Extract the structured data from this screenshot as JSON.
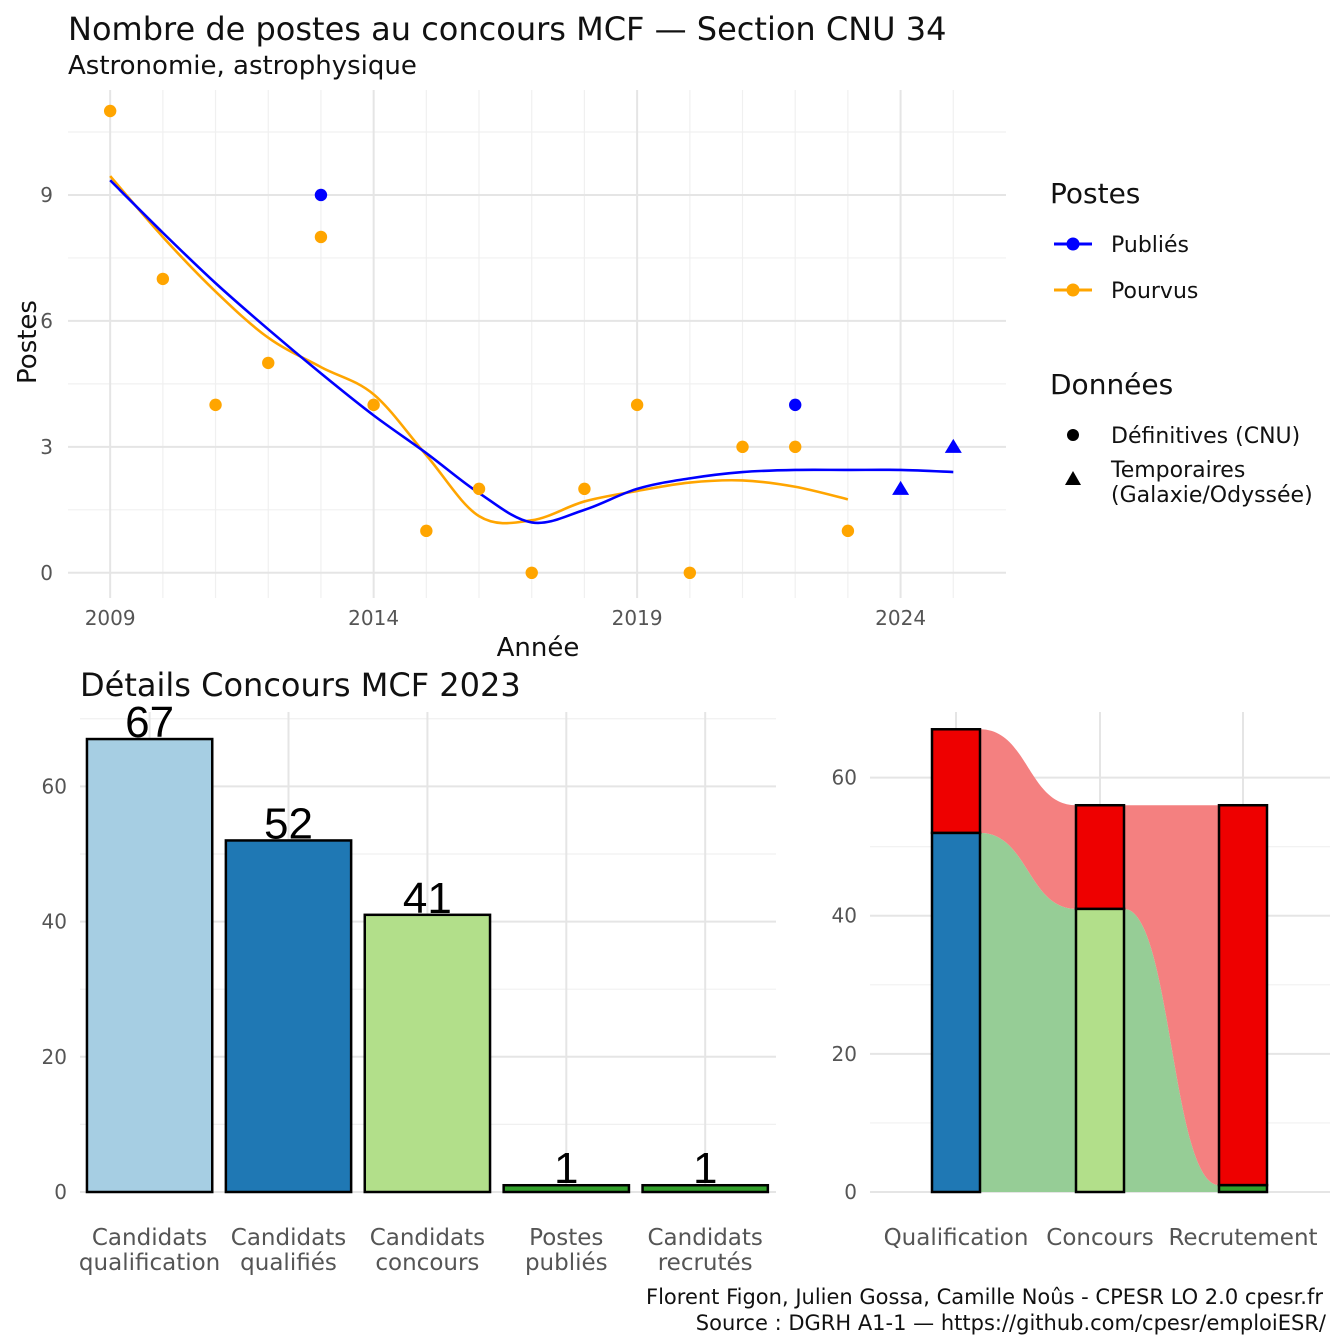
{
  "colors": {
    "publies": "#0000ff",
    "pourvus": "#ffa500",
    "cand_qualif": "#a6cee3",
    "cand_qualifies": "#1f78b4",
    "cand_concours": "#b2df8a",
    "postes_publies": "#33a02c",
    "cand_recrutes": "#33a02c",
    "red": "#ee0000",
    "flow_green": "#96cd96",
    "flow_red": "#f48080"
  },
  "top_chart": {
    "title": "Nombre de postes au concours MCF —  Section CNU 34",
    "subtitle": "Astronomie, astrophysique",
    "xlabel": "Année",
    "ylabel": "Postes",
    "legend": {
      "postes_title": "Postes",
      "postes_items": [
        "Publiés",
        "Pourvus"
      ],
      "donnees_title": "Données",
      "donnees_items": [
        "Définitives (CNU)",
        "Temporaires",
        "(Galaxie/Odyssée)"
      ]
    }
  },
  "bottom_left": {
    "title": "Détails Concours MCF 2023"
  },
  "caption": {
    "line1": "Florent Figon, Julien Gossa, Camille Noûs - CPESR LO 2.0 cpesr.fr",
    "line2": "Source : DGRH A1-1 — https://github.com/cpesr/emploiESR/"
  },
  "chart_data": [
    {
      "type": "scatter",
      "title": "Nombre de postes au concours MCF —  Section CNU 34",
      "subtitle": "Astronomie, astrophysique",
      "xlabel": "Année",
      "ylabel": "Postes",
      "xlim": [
        2008.2,
        2026.0
      ],
      "ylim": [
        -0.6,
        11.5
      ],
      "x_ticks": [
        2009,
        2014,
        2019,
        2024
      ],
      "y_ticks": [
        0,
        3,
        6,
        9
      ],
      "grid": true,
      "legend_position": "right",
      "series": [
        {
          "name": "Publiés",
          "points": [
            {
              "x": 2013,
              "y": 9,
              "shape": "circle"
            },
            {
              "x": 2022,
              "y": 4,
              "shape": "circle"
            },
            {
              "x": 2024,
              "y": 2,
              "shape": "triangle"
            },
            {
              "x": 2025,
              "y": 3,
              "shape": "triangle"
            }
          ],
          "smooth": [
            [
              2009,
              9.35
            ],
            [
              2010,
              8.1
            ],
            [
              2011,
              6.9
            ],
            [
              2012,
              5.8
            ],
            [
              2013,
              4.75
            ],
            [
              2014,
              3.75
            ],
            [
              2015,
              2.85
            ],
            [
              2016,
              1.9
            ],
            [
              2017,
              1.2
            ],
            [
              2018,
              1.5
            ],
            [
              2019,
              2.0
            ],
            [
              2020,
              2.25
            ],
            [
              2021,
              2.4
            ],
            [
              2022,
              2.45
            ],
            [
              2023,
              2.45
            ],
            [
              2024,
              2.45
            ],
            [
              2025,
              2.4
            ]
          ]
        },
        {
          "name": "Pourvus",
          "points": [
            {
              "x": 2009,
              "y": 11,
              "shape": "circle"
            },
            {
              "x": 2010,
              "y": 7,
              "shape": "circle"
            },
            {
              "x": 2011,
              "y": 4,
              "shape": "circle"
            },
            {
              "x": 2012,
              "y": 5,
              "shape": "circle"
            },
            {
              "x": 2013,
              "y": 8,
              "shape": "circle"
            },
            {
              "x": 2014,
              "y": 4,
              "shape": "circle"
            },
            {
              "x": 2015,
              "y": 1,
              "shape": "circle"
            },
            {
              "x": 2016,
              "y": 2,
              "shape": "circle"
            },
            {
              "x": 2017,
              "y": 0,
              "shape": "circle"
            },
            {
              "x": 2018,
              "y": 2,
              "shape": "circle"
            },
            {
              "x": 2019,
              "y": 4,
              "shape": "circle"
            },
            {
              "x": 2020,
              "y": 0,
              "shape": "circle"
            },
            {
              "x": 2021,
              "y": 3,
              "shape": "circle"
            },
            {
              "x": 2022,
              "y": 3,
              "shape": "circle"
            },
            {
              "x": 2023,
              "y": 1,
              "shape": "circle"
            }
          ],
          "smooth": [
            [
              2009,
              9.45
            ],
            [
              2010,
              8.0
            ],
            [
              2011,
              6.7
            ],
            [
              2012,
              5.6
            ],
            [
              2013,
              4.9
            ],
            [
              2014,
              4.25
            ],
            [
              2015,
              2.8
            ],
            [
              2016,
              1.35
            ],
            [
              2017,
              1.25
            ],
            [
              2018,
              1.7
            ],
            [
              2019,
              1.95
            ],
            [
              2020,
              2.15
            ],
            [
              2021,
              2.2
            ],
            [
              2022,
              2.05
            ],
            [
              2023,
              1.75
            ]
          ]
        }
      ]
    },
    {
      "type": "bar",
      "title": "Détails Concours MCF 2023",
      "categories": [
        "Candidats\nqualification",
        "Candidats\nqualifiés",
        "Candidats\nconcours",
        "Postes\npubliés",
        "Candidats\nrecrutés"
      ],
      "values": [
        67,
        52,
        41,
        1,
        1
      ],
      "ylim": [
        0,
        71
      ],
      "y_ticks": [
        0,
        20,
        40,
        60
      ],
      "grid": true
    },
    {
      "type": "bar",
      "stacked": true,
      "flows": true,
      "categories": [
        "Qualification",
        "Concours",
        "Recrutement"
      ],
      "segments": [
        {
          "category": "Qualification",
          "bottom": 0,
          "top": 52,
          "color": "#1f78b4"
        },
        {
          "category": "Qualification",
          "bottom": 52,
          "top": 67,
          "color": "#ee0000"
        },
        {
          "category": "Concours",
          "bottom": 0,
          "top": 41,
          "color": "#b2df8a"
        },
        {
          "category": "Concours",
          "bottom": 41,
          "top": 56,
          "color": "#ee0000"
        },
        {
          "category": "Recrutement",
          "bottom": 0,
          "top": 1,
          "color": "#33a02c"
        },
        {
          "category": "Recrutement",
          "bottom": 1,
          "top": 56,
          "color": "#ee0000"
        }
      ],
      "ylim": [
        0,
        69.5
      ],
      "y_ticks": [
        0,
        20,
        40,
        60
      ],
      "grid": true
    }
  ]
}
